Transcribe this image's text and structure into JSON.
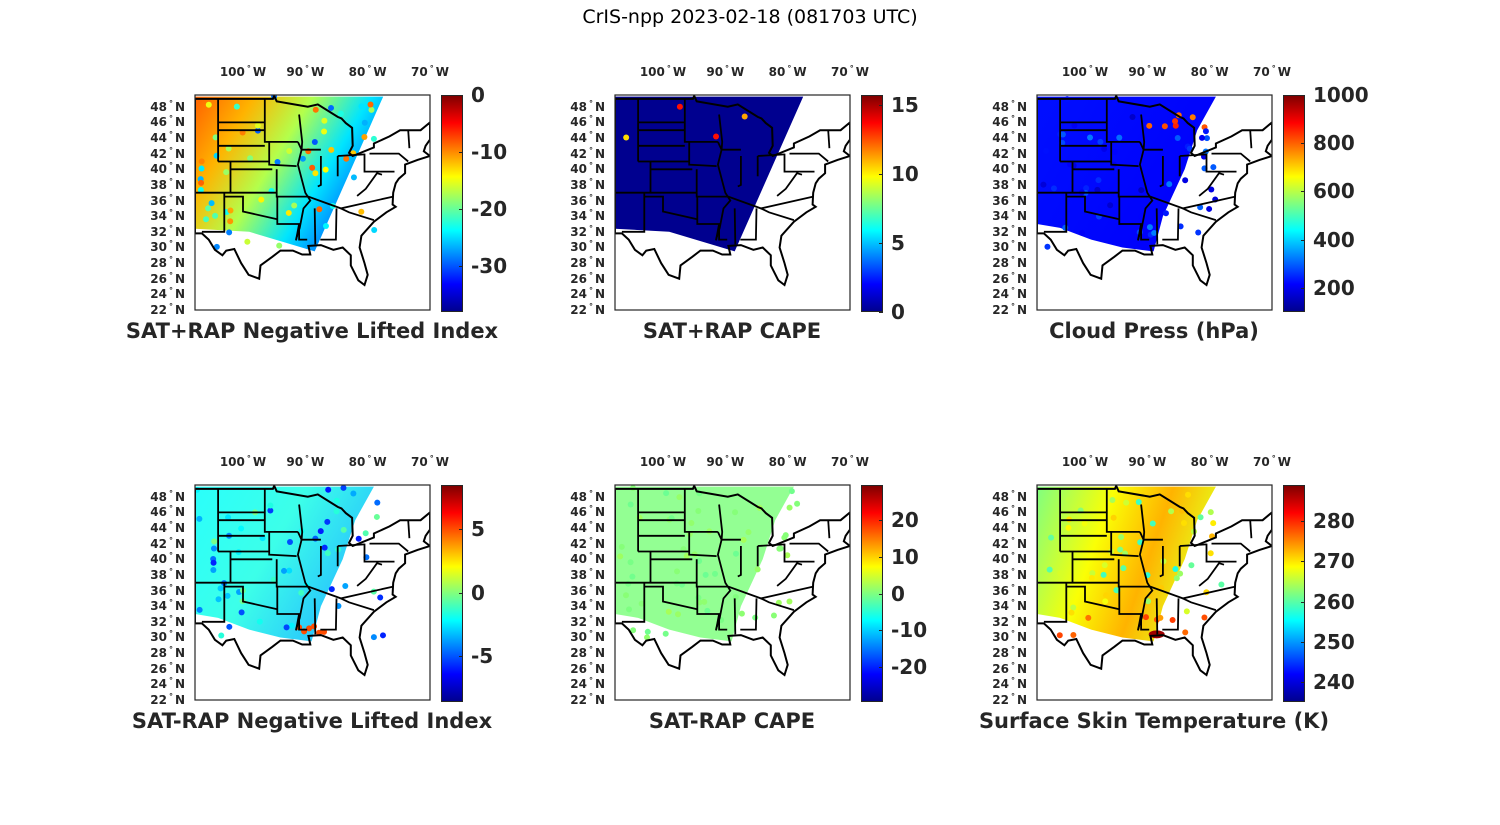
{
  "figure_title": "CrIS-npp 2023-02-18 (081703 UTC)",
  "map_extent": {
    "lon_min": -107.7,
    "lon_max": -70,
    "lat_min": 22,
    "lat_max": 49.5
  },
  "lon_ticks": [
    {
      "value": -100,
      "num": "100",
      "hem": "W"
    },
    {
      "value": -90,
      "num": "90",
      "hem": "W"
    },
    {
      "value": -80,
      "num": "80",
      "hem": "W"
    },
    {
      "value": -70,
      "num": "70",
      "hem": "W"
    }
  ],
  "lat_ticks": [
    {
      "value": 48,
      "num": "48",
      "hem": "N"
    },
    {
      "value": 46,
      "num": "46",
      "hem": "N"
    },
    {
      "value": 44,
      "num": "44",
      "hem": "N"
    },
    {
      "value": 42,
      "num": "42",
      "hem": "N"
    },
    {
      "value": 40,
      "num": "40",
      "hem": "N"
    },
    {
      "value": 38,
      "num": "38",
      "hem": "N"
    },
    {
      "value": 36,
      "num": "36",
      "hem": "N"
    },
    {
      "value": 34,
      "num": "34",
      "hem": "N"
    },
    {
      "value": 32,
      "num": "32",
      "hem": "N"
    },
    {
      "value": 30,
      "num": "30",
      "hem": "N"
    },
    {
      "value": 28,
      "num": "28",
      "hem": "N"
    },
    {
      "value": 26,
      "num": "26",
      "hem": "N"
    },
    {
      "value": 24,
      "num": "24",
      "hem": "N"
    },
    {
      "value": 22,
      "num": "22",
      "hem": "N"
    }
  ],
  "colormap": "jet",
  "chart_data": [
    {
      "type": "heatmap",
      "title": "SAT+RAP Negative Lifted Index",
      "clim": [
        -38,
        0
      ],
      "cticks": [
        "0",
        "-10",
        "-20",
        "-30"
      ],
      "ctick_values": [
        0,
        -10,
        -20,
        -30
      ],
      "style": "swath-lifted"
    },
    {
      "type": "heatmap",
      "title": "SAT+RAP CAPE",
      "clim": [
        0,
        15.7
      ],
      "cticks": [
        "15",
        "10",
        "5",
        "0"
      ],
      "ctick_values": [
        15,
        10,
        5,
        0
      ],
      "style": "swath-cape"
    },
    {
      "type": "heatmap",
      "title": "Cloud Press (hPa)",
      "clim": [
        100,
        1000
      ],
      "cticks": [
        "1000",
        "800",
        "600",
        "400",
        "200"
      ],
      "ctick_values": [
        1000,
        800,
        600,
        400,
        200
      ],
      "style": "cloud"
    },
    {
      "type": "heatmap",
      "title": "SAT-RAP Negative Lifted Index",
      "clim": [
        -8.6,
        8.5
      ],
      "cticks": [
        "5",
        "0",
        "-5"
      ],
      "ctick_values": [
        5,
        0,
        -5
      ],
      "style": "diff-lifted"
    },
    {
      "type": "heatmap",
      "title": "SAT-RAP CAPE",
      "clim": [
        -29.7,
        29.7
      ],
      "cticks": [
        "20",
        "10",
        "0",
        "-10",
        "-20"
      ],
      "ctick_values": [
        20,
        10,
        0,
        -10,
        -20
      ],
      "style": "diff-cape"
    },
    {
      "type": "heatmap",
      "title": "Surface Skin Temperature (K)",
      "clim": [
        235,
        289
      ],
      "cticks": [
        "280",
        "270",
        "260",
        "250",
        "240"
      ],
      "ctick_values": [
        280,
        270,
        260,
        250,
        240
      ],
      "style": "skin"
    }
  ]
}
